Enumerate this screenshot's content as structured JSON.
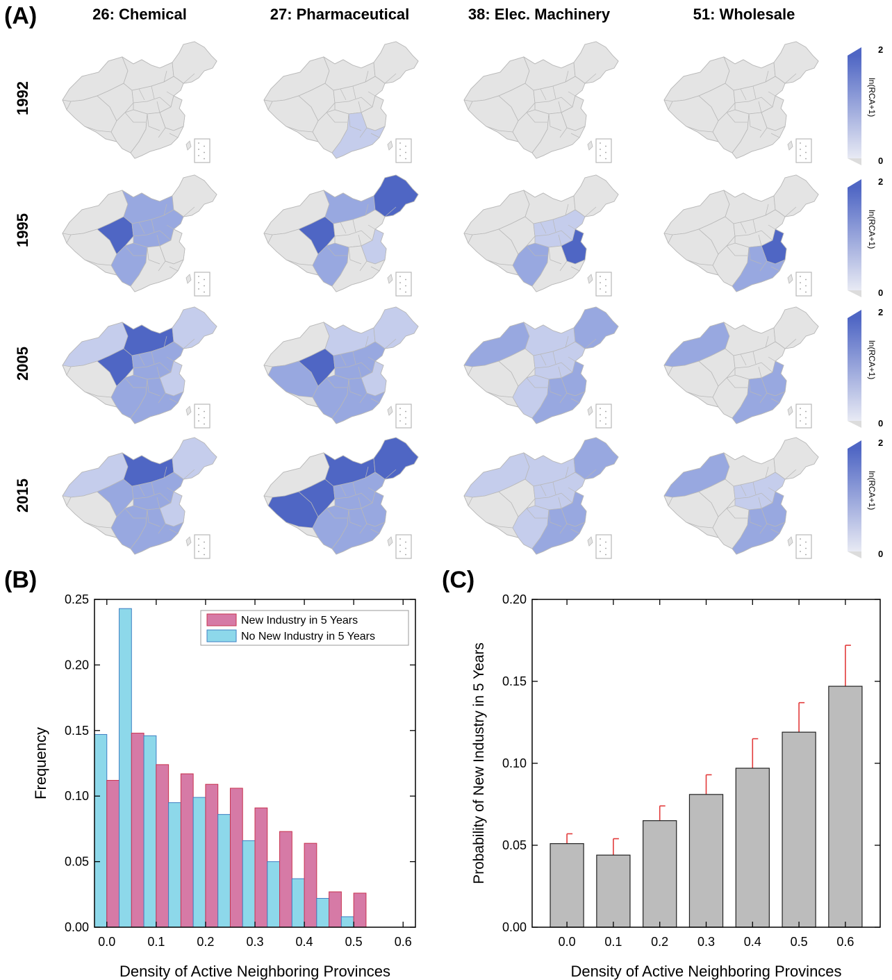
{
  "panel_labels": {
    "a": "(A)",
    "b": "(B)",
    "c": "(C)"
  },
  "maps": {
    "columns": [
      "26: Chemical",
      "27: Pharmaceutical",
      "38: Elec. Machinery",
      "51: Wholesale"
    ],
    "rows": [
      "1992",
      "1995",
      "2005",
      "2015"
    ],
    "colorbar": {
      "label": "ln(RCA+1)",
      "max": "2",
      "min": "0"
    },
    "colors": {
      "base": "#e4e4e4",
      "light": "#c5cdec",
      "mid": "#98a8e0",
      "strong": "#4f66c4",
      "border": "#b8b8b8"
    }
  },
  "chart_data": [
    {
      "type": "bar",
      "panel": "B",
      "xlabel": "Density of Active Neighboring Provinces",
      "ylabel": "Frequency",
      "xlim": [
        -0.025,
        0.625
      ],
      "ylim": [
        0,
        0.25
      ],
      "xticks": [
        0.0,
        0.1,
        0.2,
        0.3,
        0.4,
        0.5,
        0.6
      ],
      "yticks": [
        0.0,
        0.05,
        0.1,
        0.15,
        0.2,
        0.25
      ],
      "x": [
        0.0,
        0.05,
        0.1,
        0.15,
        0.2,
        0.25,
        0.3,
        0.35,
        0.4,
        0.45,
        0.5,
        0.55,
        0.6
      ],
      "legend_position": "top-right",
      "series": [
        {
          "name": "New Industry in 5 Years",
          "color": "#d67aa6",
          "stroke": "#c8334f",
          "values": [
            0.112,
            0.148,
            0.124,
            0.117,
            0.109,
            0.106,
            0.091,
            0.073,
            0.064,
            0.027,
            0.026,
            0.0,
            0.0
          ]
        },
        {
          "name": "No New Industry in 5 Years",
          "color": "#8dd8ea",
          "stroke": "#3f7fc3",
          "values": [
            0.147,
            0.243,
            0.146,
            0.095,
            0.099,
            0.086,
            0.066,
            0.05,
            0.037,
            0.022,
            0.008,
            0.0,
            0.0
          ]
        }
      ]
    },
    {
      "type": "bar",
      "panel": "C",
      "xlabel": "Density of Active Neighboring Provinces",
      "ylabel": "Probability of New Industry in 5 Years",
      "ylim": [
        0,
        0.2
      ],
      "yticks": [
        0.0,
        0.05,
        0.1,
        0.15,
        0.2
      ],
      "categories": [
        "0.0",
        "0.1",
        "0.2",
        "0.3",
        "0.4",
        "0.5",
        "0.6"
      ],
      "values": [
        0.051,
        0.044,
        0.065,
        0.081,
        0.097,
        0.119,
        0.147
      ],
      "errors": [
        0.006,
        0.01,
        0.009,
        0.012,
        0.018,
        0.018,
        0.025
      ],
      "bar_color": "#bcbcbc",
      "error_color": "#e23a3a"
    }
  ]
}
